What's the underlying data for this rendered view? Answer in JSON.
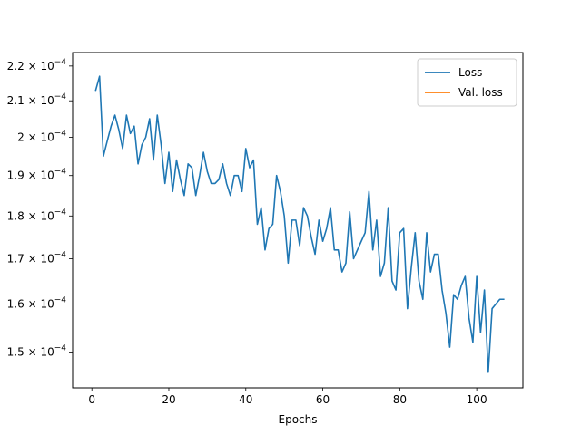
{
  "chart_data": {
    "type": "line",
    "title": "",
    "xlabel": "Epochs",
    "ylabel": "",
    "yscale": "log",
    "xlim": [
      -5,
      112
    ],
    "ylim": [
      0.000143,
      0.000224
    ],
    "xticks": [
      0,
      20,
      40,
      60,
      80,
      100
    ],
    "xtick_labels": [
      "0",
      "20",
      "40",
      "60",
      "80",
      "100"
    ],
    "yticks": [
      0.00015,
      0.00016,
      0.00017,
      0.00018,
      0.00019,
      0.0002,
      0.00021,
      0.00022
    ],
    "ytick_labels": [
      {
        "mant": "1.5",
        "exp": "−4"
      },
      {
        "mant": "1.6",
        "exp": "−4"
      },
      {
        "mant": "1.7",
        "exp": "−4"
      },
      {
        "mant": "1.8",
        "exp": "−4"
      },
      {
        "mant": "1.9",
        "exp": "−4"
      },
      {
        "mant": "2",
        "exp": "−4"
      },
      {
        "mant": "2.1",
        "exp": "−4"
      },
      {
        "mant": "2.2",
        "exp": "−4"
      }
    ],
    "ytick_base": "10",
    "ytick_times": "×",
    "grid": false,
    "legend": {
      "position": "upper right"
    },
    "series": [
      {
        "name": "Loss",
        "color": "#1f77b4",
        "x": [
          1,
          2,
          3,
          4,
          5,
          6,
          7,
          8,
          9,
          10,
          11,
          12,
          13,
          14,
          15,
          16,
          17,
          18,
          19,
          20,
          21,
          22,
          23,
          24,
          25,
          26,
          27,
          28,
          29,
          30,
          31,
          32,
          33,
          34,
          35,
          36,
          37,
          38,
          39,
          40,
          41,
          42,
          43,
          44,
          45,
          46,
          47,
          48,
          49,
          50,
          51,
          52,
          53,
          54,
          55,
          56,
          57,
          58,
          59,
          60,
          61,
          62,
          63,
          64,
          65,
          66,
          67,
          68,
          69,
          70,
          71,
          72,
          73,
          74,
          75,
          76,
          77,
          78,
          79,
          80,
          81,
          82,
          83,
          84,
          85,
          86,
          87,
          88,
          89,
          90,
          91,
          92,
          93,
          94,
          95,
          96,
          97,
          98,
          99,
          100,
          101,
          102,
          103,
          104,
          105,
          106,
          107
        ],
        "values": [
          0.000213,
          0.000217,
          0.000195,
          0.000199,
          0.000203,
          0.000206,
          0.000202,
          0.000197,
          0.000206,
          0.000201,
          0.000203,
          0.000193,
          0.000198,
          0.0002,
          0.000205,
          0.000194,
          0.000206,
          0.000198,
          0.000188,
          0.000196,
          0.000186,
          0.000194,
          0.000189,
          0.000185,
          0.000193,
          0.000192,
          0.000185,
          0.00019,
          0.000196,
          0.000191,
          0.000188,
          0.000188,
          0.000189,
          0.000193,
          0.000188,
          0.000185,
          0.00019,
          0.00019,
          0.000186,
          0.000197,
          0.000192,
          0.000194,
          0.000178,
          0.000182,
          0.000172,
          0.000177,
          0.000178,
          0.00019,
          0.000186,
          0.00018,
          0.000169,
          0.000179,
          0.000179,
          0.000173,
          0.000182,
          0.00018,
          0.000175,
          0.000171,
          0.000179,
          0.000174,
          0.000177,
          0.000182,
          0.000172,
          0.000172,
          0.000167,
          0.000169,
          0.000181,
          0.00017,
          0.000172,
          0.000174,
          0.000176,
          0.000186,
          0.000172,
          0.000179,
          0.000166,
          0.000169,
          0.000182,
          0.000165,
          0.000163,
          0.000176,
          0.000177,
          0.000159,
          0.000168,
          0.000176,
          0.000165,
          0.000161,
          0.000176,
          0.000167,
          0.000171,
          0.000171,
          0.000163,
          0.000158,
          0.000151,
          0.000162,
          0.000161,
          0.000164,
          0.000166,
          0.000157,
          0.000152,
          0.000166,
          0.000154,
          0.000163,
          0.000146,
          0.000159,
          0.00016,
          0.000161,
          0.000161
        ]
      },
      {
        "name": "Val. loss",
        "color": "#ff7f0e",
        "x": [],
        "values": []
      }
    ]
  }
}
